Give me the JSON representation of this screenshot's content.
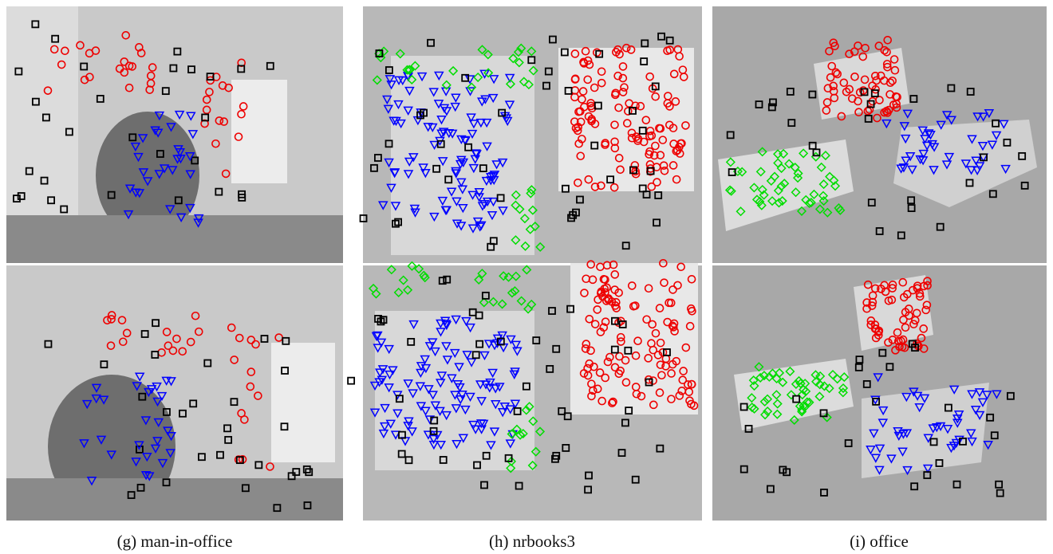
{
  "panels": [
    {
      "caption": "(g) man-in-office"
    },
    {
      "caption": "(h) nrbooks3"
    },
    {
      "caption": "(i) office"
    }
  ]
}
